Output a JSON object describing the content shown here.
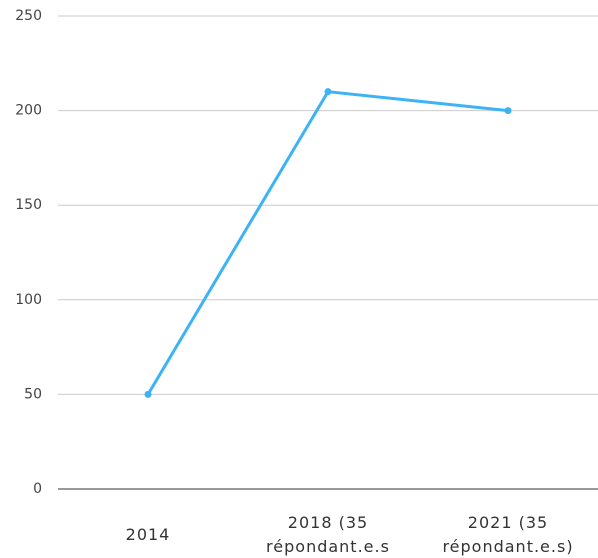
{
  "chart_data": {
    "type": "line",
    "categories": [
      "2014",
      "2018 (35 répondant.e.s",
      "2021 (35 répondant.e.s)"
    ],
    "series": [
      {
        "color": "#3db3f5",
        "values": [
          50,
          210,
          200
        ]
      }
    ],
    "ylim": [
      0,
      250
    ],
    "yticks": [
      0,
      50,
      100,
      150,
      200,
      250
    ],
    "grid": true
  }
}
